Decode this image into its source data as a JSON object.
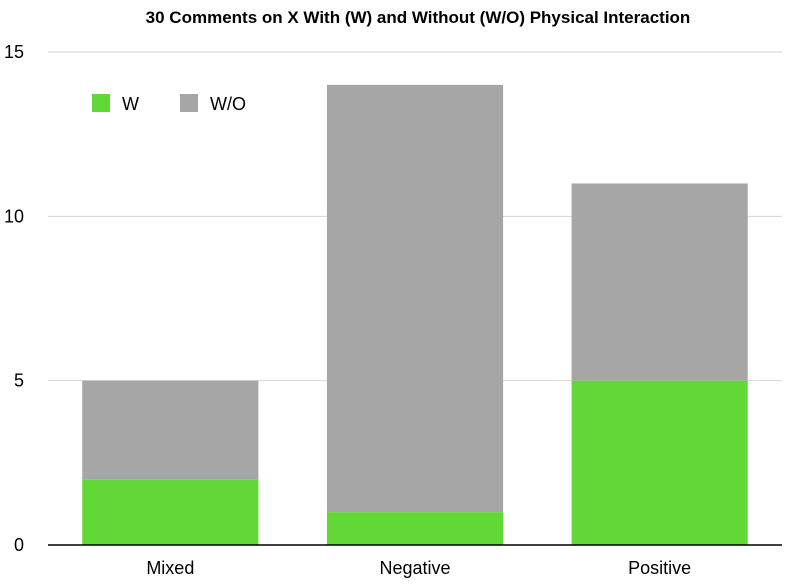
{
  "chart_data": {
    "type": "bar",
    "stacked": true,
    "title": "30 Comments on X With (W) and Without (W/O) Physical Interaction",
    "xlabel": "",
    "ylabel": "",
    "categories": [
      "Mixed",
      "Negative",
      "Positive"
    ],
    "series": [
      {
        "name": "W",
        "values": [
          2,
          1,
          5
        ],
        "color": "#62d836"
      },
      {
        "name": "W/O",
        "values": [
          3,
          13,
          6
        ],
        "color": "#a6a6a6"
      }
    ],
    "ylim": [
      0,
      15
    ],
    "yticks": [
      0,
      5,
      10,
      15
    ],
    "grid": true,
    "legend_position": "top-left"
  }
}
